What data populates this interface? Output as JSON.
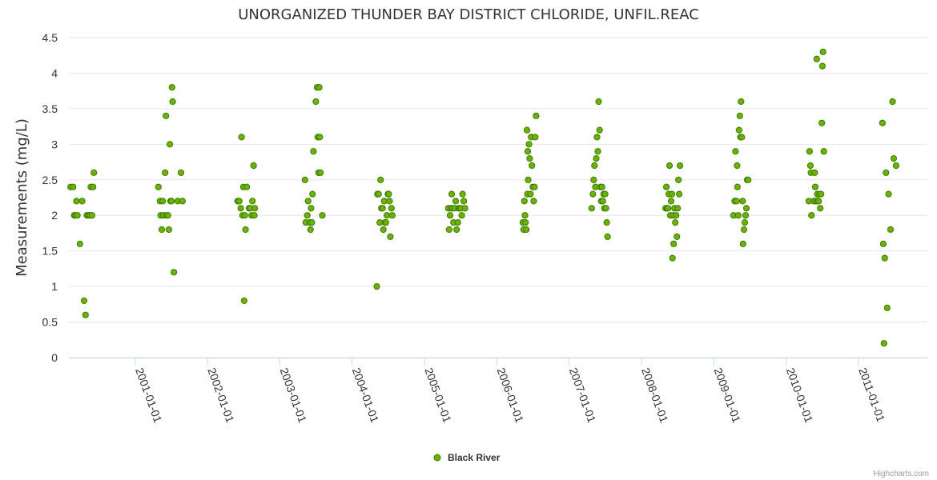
{
  "chart_data": {
    "type": "scatter",
    "title": "UNORGANIZED THUNDER BAY DISTRICT CHLORIDE, UNFIL.REAC",
    "xlabel": "",
    "ylabel": "Measurements (mg/L)",
    "xlim": [
      "2000-02-01",
      "2011-12-15"
    ],
    "ylim": [
      0,
      4.5
    ],
    "yticks": [
      "0",
      "0.5",
      "1",
      "1.5",
      "2",
      "2.5",
      "3",
      "3.5",
      "4",
      "4.5"
    ],
    "xticks": [
      "2001-01-01",
      "2002-01-01",
      "2003-01-01",
      "2004-01-01",
      "2005-01-01",
      "2006-01-01",
      "2007-01-01",
      "2008-01-01",
      "2009-01-01",
      "2010-01-01",
      "2011-01-01"
    ],
    "grid": "horizontal",
    "legend_position": "bottom-center",
    "credits": "Highcharts.com",
    "series": [
      {
        "name": "Black River",
        "color": "#6db200",
        "border_color": "#3a7a00",
        "points": [
          [
            "2000-02-10",
            2.4
          ],
          [
            "2000-02-22",
            2.4
          ],
          [
            "2000-02-28",
            2.0
          ],
          [
            "2000-03-05",
            2.0
          ],
          [
            "2000-03-10",
            2.2
          ],
          [
            "2000-03-15",
            2.0
          ],
          [
            "2000-03-28",
            1.6
          ],
          [
            "2000-04-08",
            2.2
          ],
          [
            "2000-04-18",
            0.8
          ],
          [
            "2000-04-25",
            0.6
          ],
          [
            "2000-05-02",
            2.0
          ],
          [
            "2000-05-10",
            2.0
          ],
          [
            "2000-05-18",
            2.0
          ],
          [
            "2000-05-22",
            2.4
          ],
          [
            "2000-05-28",
            2.0
          ],
          [
            "2000-06-02",
            2.4
          ],
          [
            "2000-06-06",
            2.6
          ],
          [
            "2001-04-28",
            2.4
          ],
          [
            "2001-05-06",
            2.2
          ],
          [
            "2001-05-10",
            2.0
          ],
          [
            "2001-05-15",
            1.8
          ],
          [
            "2001-05-20",
            2.2
          ],
          [
            "2001-05-24",
            2.0
          ],
          [
            "2001-06-01",
            2.6
          ],
          [
            "2001-06-05",
            3.4
          ],
          [
            "2001-06-10",
            2.0
          ],
          [
            "2001-06-15",
            2.0
          ],
          [
            "2001-06-20",
            1.8
          ],
          [
            "2001-06-25",
            3.0
          ],
          [
            "2001-06-28",
            2.2
          ],
          [
            "2001-07-03",
            2.2
          ],
          [
            "2001-07-06",
            3.8
          ],
          [
            "2001-07-09",
            3.6
          ],
          [
            "2001-07-15",
            1.2
          ],
          [
            "2001-08-04",
            2.2
          ],
          [
            "2001-08-20",
            2.6
          ],
          [
            "2001-08-28",
            2.2
          ],
          [
            "2002-06-02",
            2.2
          ],
          [
            "2002-06-10",
            2.2
          ],
          [
            "2002-06-18",
            2.1
          ],
          [
            "2002-06-22",
            3.1
          ],
          [
            "2002-06-27",
            2.0
          ],
          [
            "2002-07-01",
            2.4
          ],
          [
            "2002-07-05",
            0.8
          ],
          [
            "2002-07-08",
            2.0
          ],
          [
            "2002-07-12",
            1.8
          ],
          [
            "2002-07-18",
            2.4
          ],
          [
            "2002-07-30",
            2.1
          ],
          [
            "2002-08-05",
            2.1
          ],
          [
            "2002-08-12",
            2.0
          ],
          [
            "2002-08-16",
            2.2
          ],
          [
            "2002-08-22",
            2.7
          ],
          [
            "2002-08-25",
            2.0
          ],
          [
            "2002-08-28",
            2.1
          ],
          [
            "2003-05-08",
            2.5
          ],
          [
            "2003-05-12",
            1.9
          ],
          [
            "2003-05-20",
            2.0
          ],
          [
            "2003-05-24",
            2.2
          ],
          [
            "2003-06-01",
            1.9
          ],
          [
            "2003-06-05",
            1.8
          ],
          [
            "2003-06-08",
            2.1
          ],
          [
            "2003-06-12",
            1.9
          ],
          [
            "2003-06-15",
            2.3
          ],
          [
            "2003-06-20",
            2.9
          ],
          [
            "2003-07-02",
            3.6
          ],
          [
            "2003-07-08",
            3.8
          ],
          [
            "2003-07-12",
            3.1
          ],
          [
            "2003-07-16",
            2.6
          ],
          [
            "2003-07-19",
            3.8
          ],
          [
            "2003-07-22",
            3.1
          ],
          [
            "2003-07-25",
            2.6
          ],
          [
            "2003-08-04",
            2.0
          ],
          [
            "2004-05-05",
            1.0
          ],
          [
            "2004-05-08",
            2.3
          ],
          [
            "2004-05-14",
            2.3
          ],
          [
            "2004-05-20",
            1.9
          ],
          [
            "2004-05-24",
            2.5
          ],
          [
            "2004-05-28",
            2.1
          ],
          [
            "2004-06-03",
            2.1
          ],
          [
            "2004-06-07",
            1.8
          ],
          [
            "2004-06-11",
            2.2
          ],
          [
            "2004-06-15",
            1.9
          ],
          [
            "2004-06-20",
            1.9
          ],
          [
            "2004-06-25",
            2.0
          ],
          [
            "2004-06-30",
            2.3
          ],
          [
            "2004-07-04",
            2.3
          ],
          [
            "2004-07-08",
            2.2
          ],
          [
            "2004-07-12",
            1.7
          ],
          [
            "2004-07-18",
            2.1
          ],
          [
            "2004-07-22",
            2.0
          ],
          [
            "2005-05-01",
            2.1
          ],
          [
            "2005-05-05",
            1.8
          ],
          [
            "2005-05-10",
            2.0
          ],
          [
            "2005-05-14",
            2.1
          ],
          [
            "2005-05-18",
            2.3
          ],
          [
            "2005-05-22",
            2.1
          ],
          [
            "2005-05-27",
            1.9
          ],
          [
            "2005-06-01",
            2.1
          ],
          [
            "2005-06-07",
            2.2
          ],
          [
            "2005-06-12",
            1.8
          ],
          [
            "2005-06-18",
            1.9
          ],
          [
            "2005-06-22",
            2.1
          ],
          [
            "2005-06-28",
            2.1
          ],
          [
            "2005-07-04",
            2.1
          ],
          [
            "2005-07-08",
            2.0
          ],
          [
            "2005-07-12",
            2.3
          ],
          [
            "2005-07-18",
            2.2
          ],
          [
            "2005-07-24",
            2.1
          ],
          [
            "2006-05-12",
            1.9
          ],
          [
            "2006-05-16",
            1.8
          ],
          [
            "2006-05-20",
            2.2
          ],
          [
            "2006-05-23",
            2.0
          ],
          [
            "2006-05-26",
            1.9
          ],
          [
            "2006-05-30",
            1.8
          ],
          [
            "2006-06-02",
            3.2
          ],
          [
            "2006-06-04",
            2.3
          ],
          [
            "2006-06-06",
            2.9
          ],
          [
            "2006-06-08",
            2.5
          ],
          [
            "2006-06-12",
            3.0
          ],
          [
            "2006-06-16",
            2.8
          ],
          [
            "2006-06-20",
            2.3
          ],
          [
            "2006-06-23",
            3.1
          ],
          [
            "2006-06-27",
            2.7
          ],
          [
            "2006-07-02",
            2.4
          ],
          [
            "2006-07-06",
            2.2
          ],
          [
            "2006-07-10",
            2.4
          ],
          [
            "2006-07-14",
            3.1
          ],
          [
            "2006-07-18",
            3.4
          ],
          [
            "2007-04-25",
            2.1
          ],
          [
            "2007-05-01",
            2.3
          ],
          [
            "2007-05-05",
            2.5
          ],
          [
            "2007-05-09",
            2.7
          ],
          [
            "2007-05-14",
            2.4
          ],
          [
            "2007-05-18",
            2.8
          ],
          [
            "2007-05-22",
            3.1
          ],
          [
            "2007-05-26",
            2.9
          ],
          [
            "2007-05-30",
            3.6
          ],
          [
            "2007-06-04",
            3.2
          ],
          [
            "2007-06-09",
            2.4
          ],
          [
            "2007-06-12",
            2.2
          ],
          [
            "2007-06-16",
            2.4
          ],
          [
            "2007-06-20",
            2.2
          ],
          [
            "2007-06-24",
            2.3
          ],
          [
            "2007-06-28",
            2.1
          ],
          [
            "2007-07-02",
            2.3
          ],
          [
            "2007-07-06",
            2.1
          ],
          [
            "2007-07-10",
            1.9
          ],
          [
            "2007-07-14",
            1.7
          ],
          [
            "2008-05-02",
            2.1
          ],
          [
            "2008-05-06",
            2.4
          ],
          [
            "2008-05-10",
            2.1
          ],
          [
            "2008-05-14",
            2.1
          ],
          [
            "2008-05-18",
            2.3
          ],
          [
            "2008-05-22",
            2.7
          ],
          [
            "2008-05-26",
            2.0
          ],
          [
            "2008-05-30",
            2.2
          ],
          [
            "2008-06-03",
            2.3
          ],
          [
            "2008-06-06",
            1.4
          ],
          [
            "2008-06-09",
            2.0
          ],
          [
            "2008-06-12",
            1.6
          ],
          [
            "2008-06-16",
            2.1
          ],
          [
            "2008-06-20",
            1.9
          ],
          [
            "2008-06-24",
            2.0
          ],
          [
            "2008-06-28",
            1.7
          ],
          [
            "2008-07-02",
            2.1
          ],
          [
            "2008-07-06",
            2.5
          ],
          [
            "2008-07-10",
            2.3
          ],
          [
            "2008-07-14",
            2.7
          ],
          [
            "2009-04-10",
            2.0
          ],
          [
            "2009-04-16",
            2.2
          ],
          [
            "2009-04-20",
            2.9
          ],
          [
            "2009-04-25",
            2.2
          ],
          [
            "2009-04-28",
            2.7
          ],
          [
            "2009-04-30",
            2.4
          ],
          [
            "2009-05-04",
            2.0
          ],
          [
            "2009-05-08",
            3.2
          ],
          [
            "2009-05-12",
            3.4
          ],
          [
            "2009-05-15",
            3.1
          ],
          [
            "2009-05-18",
            3.6
          ],
          [
            "2009-05-22",
            3.1
          ],
          [
            "2009-05-26",
            2.2
          ],
          [
            "2009-05-28",
            1.6
          ],
          [
            "2009-06-02",
            1.8
          ],
          [
            "2009-06-06",
            1.9
          ],
          [
            "2009-06-10",
            2.0
          ],
          [
            "2009-06-14",
            2.1
          ],
          [
            "2009-06-18",
            2.5
          ],
          [
            "2009-06-23",
            2.5
          ],
          [
            "2010-04-25",
            2.2
          ],
          [
            "2010-04-29",
            2.9
          ],
          [
            "2010-05-03",
            2.7
          ],
          [
            "2010-05-06",
            2.6
          ],
          [
            "2010-05-09",
            2.0
          ],
          [
            "2010-05-20",
            2.2
          ],
          [
            "2010-05-25",
            2.6
          ],
          [
            "2010-05-28",
            2.4
          ],
          [
            "2010-05-31",
            2.2
          ],
          [
            "2010-06-04",
            4.2
          ],
          [
            "2010-06-07",
            2.3
          ],
          [
            "2010-06-10",
            2.2
          ],
          [
            "2010-06-14",
            2.2
          ],
          [
            "2010-06-18",
            2.3
          ],
          [
            "2010-06-22",
            2.1
          ],
          [
            "2010-06-26",
            2.3
          ],
          [
            "2010-06-30",
            3.3
          ],
          [
            "2010-07-03",
            4.1
          ],
          [
            "2010-07-06",
            4.3
          ],
          [
            "2010-07-10",
            2.9
          ],
          [
            "2011-05-02",
            3.3
          ],
          [
            "2011-05-06",
            1.6
          ],
          [
            "2011-05-10",
            0.2
          ],
          [
            "2011-05-14",
            1.4
          ],
          [
            "2011-05-20",
            2.6
          ],
          [
            "2011-05-26",
            0.7
          ],
          [
            "2011-06-02",
            2.3
          ],
          [
            "2011-06-12",
            1.8
          ],
          [
            "2011-06-22",
            3.6
          ],
          [
            "2011-06-28",
            2.8
          ],
          [
            "2011-07-10",
            2.7
          ]
        ]
      }
    ]
  }
}
